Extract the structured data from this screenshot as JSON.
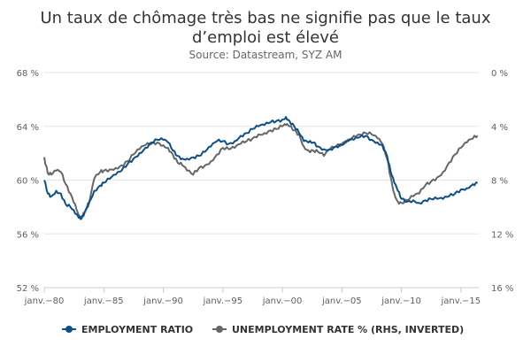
{
  "chart_data": {
    "type": "line",
    "title_line1": "Un taux de chômage très bas ne signifie pas que le taux",
    "title_line2": "d’emploi est élevé",
    "subtitle": "Source: Datastream, SYZ AM",
    "x_range": [
      1980,
      2016.5
    ],
    "x_ticks": [
      {
        "value": 1980,
        "label": "janv.−80"
      },
      {
        "value": 1985,
        "label": "janv.−85"
      },
      {
        "value": 1990,
        "label": "janv.−90"
      },
      {
        "value": 1995,
        "label": "janv.−95"
      },
      {
        "value": 2000,
        "label": "janv.−00"
      },
      {
        "value": 2005,
        "label": "janv.−05"
      },
      {
        "value": 2010,
        "label": "janv.−10"
      },
      {
        "value": 2015,
        "label": "janv.−15"
      }
    ],
    "y_left": {
      "min": 52,
      "max": 68,
      "ticks": [
        {
          "value": 68,
          "label": "68 %"
        },
        {
          "value": 64,
          "label": "64 %"
        },
        {
          "value": 60,
          "label": "60 %"
        },
        {
          "value": 56,
          "label": "56 %"
        },
        {
          "value": 52,
          "label": "52 %"
        }
      ]
    },
    "y_right": {
      "min": 0,
      "max": 16,
      "inverted": true,
      "ticks": [
        {
          "value": 0,
          "label": "0 %"
        },
        {
          "value": 4,
          "label": "4 %"
        },
        {
          "value": 8,
          "label": "8 %"
        },
        {
          "value": 12,
          "label": "12 %"
        },
        {
          "value": 16,
          "label": "16 %"
        }
      ]
    },
    "grid": true,
    "legend_position": "bottom",
    "series": [
      {
        "name": "EMPLOYMENT RATIO",
        "axis": "left",
        "color": "#0b4f8a",
        "points": [
          [
            1980.0,
            60.0
          ],
          [
            1980.3,
            59.0
          ],
          [
            1980.6,
            58.8
          ],
          [
            1981.0,
            59.2
          ],
          [
            1981.4,
            59.0
          ],
          [
            1981.8,
            58.2
          ],
          [
            1982.2,
            58.0
          ],
          [
            1982.6,
            57.5
          ],
          [
            1982.9,
            57.2
          ],
          [
            1983.1,
            57.1
          ],
          [
            1983.4,
            57.6
          ],
          [
            1983.8,
            58.4
          ],
          [
            1984.2,
            59.2
          ],
          [
            1984.7,
            59.6
          ],
          [
            1985.0,
            59.8
          ],
          [
            1985.5,
            60.1
          ],
          [
            1986.0,
            60.4
          ],
          [
            1986.5,
            60.7
          ],
          [
            1987.0,
            61.2
          ],
          [
            1987.5,
            61.6
          ],
          [
            1988.0,
            62.0
          ],
          [
            1988.5,
            62.4
          ],
          [
            1989.0,
            62.8
          ],
          [
            1989.5,
            63.0
          ],
          [
            1990.0,
            63.0
          ],
          [
            1990.4,
            62.8
          ],
          [
            1990.8,
            62.2
          ],
          [
            1991.2,
            61.8
          ],
          [
            1991.6,
            61.6
          ],
          [
            1992.0,
            61.6
          ],
          [
            1992.5,
            61.7
          ],
          [
            1993.0,
            61.8
          ],
          [
            1993.5,
            62.1
          ],
          [
            1994.0,
            62.5
          ],
          [
            1994.5,
            62.9
          ],
          [
            1995.0,
            62.9
          ],
          [
            1995.5,
            62.7
          ],
          [
            1996.0,
            62.9
          ],
          [
            1996.5,
            63.3
          ],
          [
            1997.0,
            63.5
          ],
          [
            1997.5,
            63.8
          ],
          [
            1998.0,
            64.0
          ],
          [
            1998.5,
            64.1
          ],
          [
            1999.0,
            64.3
          ],
          [
            1999.5,
            64.4
          ],
          [
            2000.0,
            64.5
          ],
          [
            2000.3,
            64.7
          ],
          [
            2000.6,
            64.4
          ],
          [
            2001.0,
            64.0
          ],
          [
            2001.4,
            63.5
          ],
          [
            2001.8,
            62.9
          ],
          [
            2002.2,
            62.8
          ],
          [
            2002.6,
            62.8
          ],
          [
            2003.0,
            62.5
          ],
          [
            2003.5,
            62.3
          ],
          [
            2004.0,
            62.3
          ],
          [
            2004.5,
            62.5
          ],
          [
            2005.0,
            62.6
          ],
          [
            2005.5,
            62.9
          ],
          [
            2006.0,
            63.0
          ],
          [
            2006.5,
            63.2
          ],
          [
            2007.0,
            63.3
          ],
          [
            2007.5,
            63.0
          ],
          [
            2008.0,
            62.8
          ],
          [
            2008.4,
            62.6
          ],
          [
            2008.8,
            61.8
          ],
          [
            2009.1,
            60.6
          ],
          [
            2009.4,
            59.8
          ],
          [
            2009.7,
            59.2
          ],
          [
            2010.0,
            58.6
          ],
          [
            2010.5,
            58.4
          ],
          [
            2011.0,
            58.5
          ],
          [
            2011.5,
            58.3
          ],
          [
            2012.0,
            58.5
          ],
          [
            2012.5,
            58.6
          ],
          [
            2013.0,
            58.6
          ],
          [
            2013.5,
            58.6
          ],
          [
            2014.0,
            58.8
          ],
          [
            2014.5,
            59.0
          ],
          [
            2015.0,
            59.3
          ],
          [
            2015.5,
            59.4
          ],
          [
            2016.0,
            59.7
          ],
          [
            2016.4,
            59.8
          ]
        ]
      },
      {
        "name": "UNEMPLOYMENT RATE % (RHS, INVERTED)",
        "axis": "right",
        "color": "#666666",
        "points": [
          [
            1980.0,
            6.3
          ],
          [
            1980.3,
            7.5
          ],
          [
            1980.6,
            7.6
          ],
          [
            1981.0,
            7.3
          ],
          [
            1981.4,
            7.4
          ],
          [
            1981.8,
            8.3
          ],
          [
            1982.2,
            9.0
          ],
          [
            1982.6,
            9.8
          ],
          [
            1982.9,
            10.6
          ],
          [
            1983.1,
            10.8
          ],
          [
            1983.4,
            10.4
          ],
          [
            1983.8,
            9.6
          ],
          [
            1984.2,
            7.9
          ],
          [
            1984.7,
            7.4
          ],
          [
            1985.0,
            7.3
          ],
          [
            1985.5,
            7.2
          ],
          [
            1986.0,
            7.1
          ],
          [
            1986.5,
            6.9
          ],
          [
            1987.0,
            6.6
          ],
          [
            1987.5,
            6.1
          ],
          [
            1988.0,
            5.7
          ],
          [
            1988.5,
            5.4
          ],
          [
            1989.0,
            5.3
          ],
          [
            1989.5,
            5.2
          ],
          [
            1990.0,
            5.4
          ],
          [
            1990.4,
            5.6
          ],
          [
            1990.8,
            6.1
          ],
          [
            1991.2,
            6.7
          ],
          [
            1991.6,
            6.9
          ],
          [
            1992.0,
            7.3
          ],
          [
            1992.5,
            7.6
          ],
          [
            1993.0,
            7.1
          ],
          [
            1993.5,
            6.9
          ],
          [
            1994.0,
            6.6
          ],
          [
            1994.5,
            6.1
          ],
          [
            1995.0,
            5.6
          ],
          [
            1995.5,
            5.7
          ],
          [
            1996.0,
            5.6
          ],
          [
            1996.5,
            5.3
          ],
          [
            1997.0,
            5.1
          ],
          [
            1997.5,
            4.9
          ],
          [
            1998.0,
            4.6
          ],
          [
            1998.5,
            4.5
          ],
          [
            1999.0,
            4.3
          ],
          [
            1999.5,
            4.2
          ],
          [
            2000.0,
            4.0
          ],
          [
            2000.3,
            3.9
          ],
          [
            2000.6,
            4.0
          ],
          [
            2001.0,
            4.3
          ],
          [
            2001.4,
            4.6
          ],
          [
            2001.8,
            5.5
          ],
          [
            2002.2,
            5.8
          ],
          [
            2002.6,
            5.8
          ],
          [
            2003.0,
            5.9
          ],
          [
            2003.5,
            6.2
          ],
          [
            2004.0,
            5.7
          ],
          [
            2004.5,
            5.5
          ],
          [
            2005.0,
            5.3
          ],
          [
            2005.5,
            5.0
          ],
          [
            2006.0,
            4.7
          ],
          [
            2006.5,
            4.6
          ],
          [
            2007.0,
            4.5
          ],
          [
            2007.5,
            4.6
          ],
          [
            2008.0,
            4.9
          ],
          [
            2008.4,
            5.3
          ],
          [
            2008.8,
            6.4
          ],
          [
            2009.1,
            7.8
          ],
          [
            2009.4,
            9.0
          ],
          [
            2009.7,
            9.6
          ],
          [
            2010.0,
            9.7
          ],
          [
            2010.5,
            9.5
          ],
          [
            2011.0,
            9.2
          ],
          [
            2011.5,
            9.0
          ],
          [
            2012.0,
            8.4
          ],
          [
            2012.5,
            8.1
          ],
          [
            2013.0,
            7.8
          ],
          [
            2013.5,
            7.4
          ],
          [
            2014.0,
            6.7
          ],
          [
            2014.5,
            6.1
          ],
          [
            2015.0,
            5.6
          ],
          [
            2015.5,
            5.2
          ],
          [
            2016.0,
            4.9
          ],
          [
            2016.4,
            4.7
          ]
        ]
      }
    ]
  }
}
